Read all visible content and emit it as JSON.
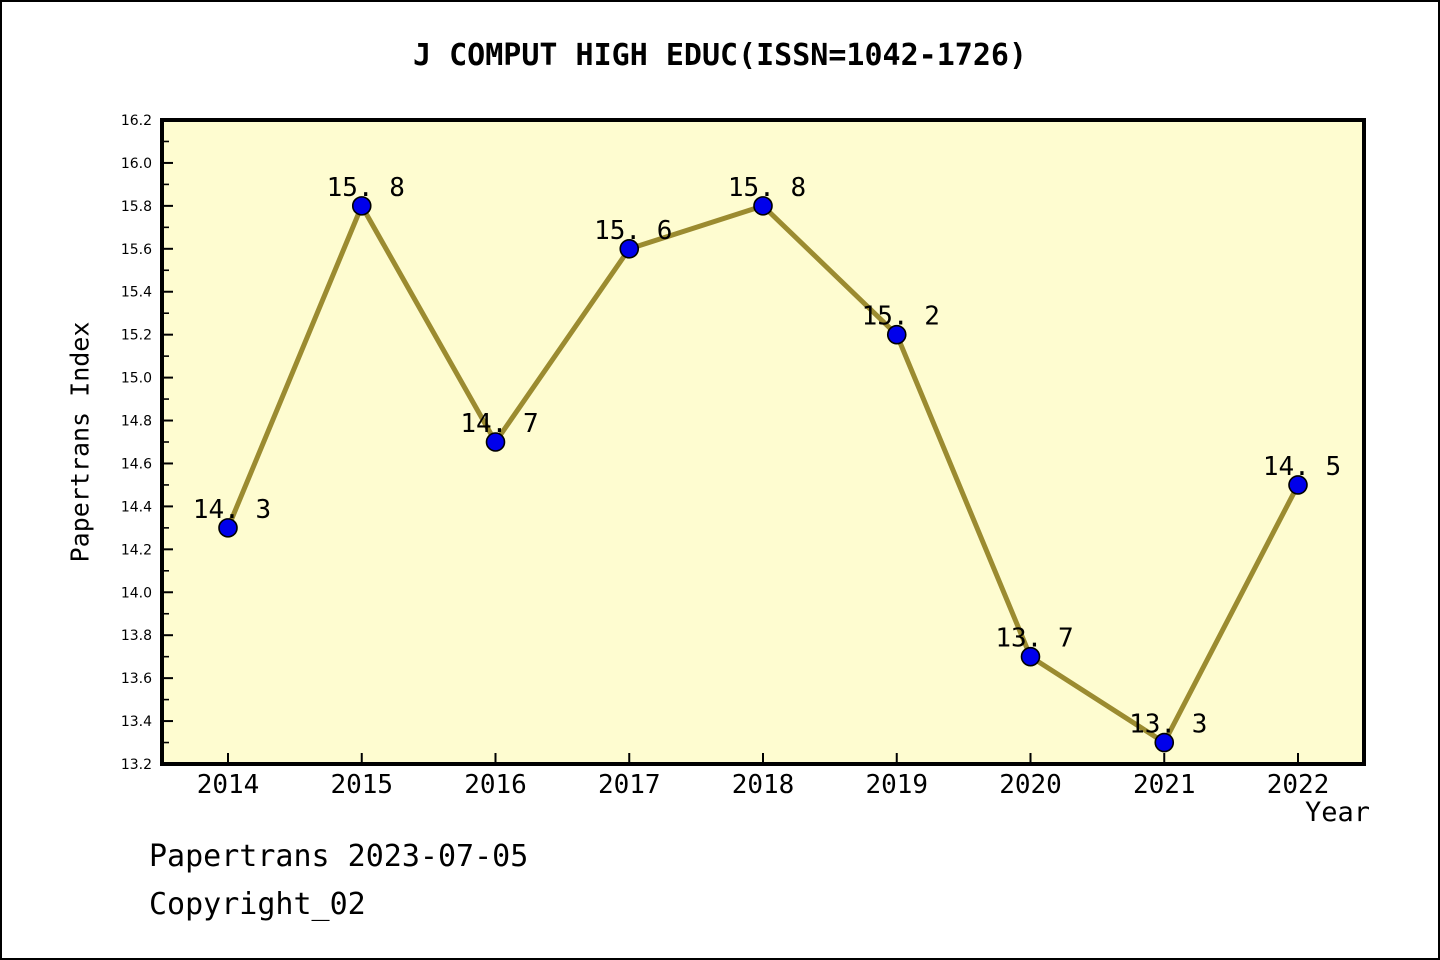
{
  "page": {
    "background": "#FFFFFF",
    "border_color": "#000000"
  },
  "chart_data": {
    "type": "line",
    "title": "J COMPUT HIGH EDUC(ISSN=1042-1726)",
    "xlabel": "Year",
    "ylabel": "Papertrans Index",
    "categories": [
      "2014",
      "2015",
      "2016",
      "2017",
      "2018",
      "2019",
      "2020",
      "2021",
      "2022"
    ],
    "series": [
      {
        "name": "Papertrans Index",
        "values": [
          14.3,
          15.8,
          14.7,
          15.6,
          15.8,
          15.2,
          13.7,
          13.3,
          14.5
        ]
      }
    ],
    "point_labels": [
      "14. 3",
      "15. 8",
      "14. 7",
      "15. 6",
      "15. 8",
      "15. 2",
      "13. 7",
      "13. 3",
      "14. 5"
    ],
    "ylim": [
      13.2,
      16.2
    ],
    "ytick_step": 0.2,
    "ytick_minor_step": 0.1,
    "ytick_labels": [
      "13.2",
      "13.4",
      "13.6",
      "13.8",
      "14.0",
      "14.2",
      "14.4",
      "14.6",
      "14.8",
      "15.0",
      "15.2",
      "15.4",
      "15.6",
      "15.8",
      "16.0",
      "16.2"
    ],
    "grid": false,
    "legend": "none",
    "colors": {
      "plot_bg": "#FEFCD0",
      "line": "#9B8B30",
      "marker_fill": "#0000EB",
      "marker_edge": "#000000",
      "axis": "#000000",
      "tick_label": "#000000"
    }
  },
  "footer": {
    "line1": "Papertrans 2023-07-05",
    "line2": "Copyright_02"
  }
}
